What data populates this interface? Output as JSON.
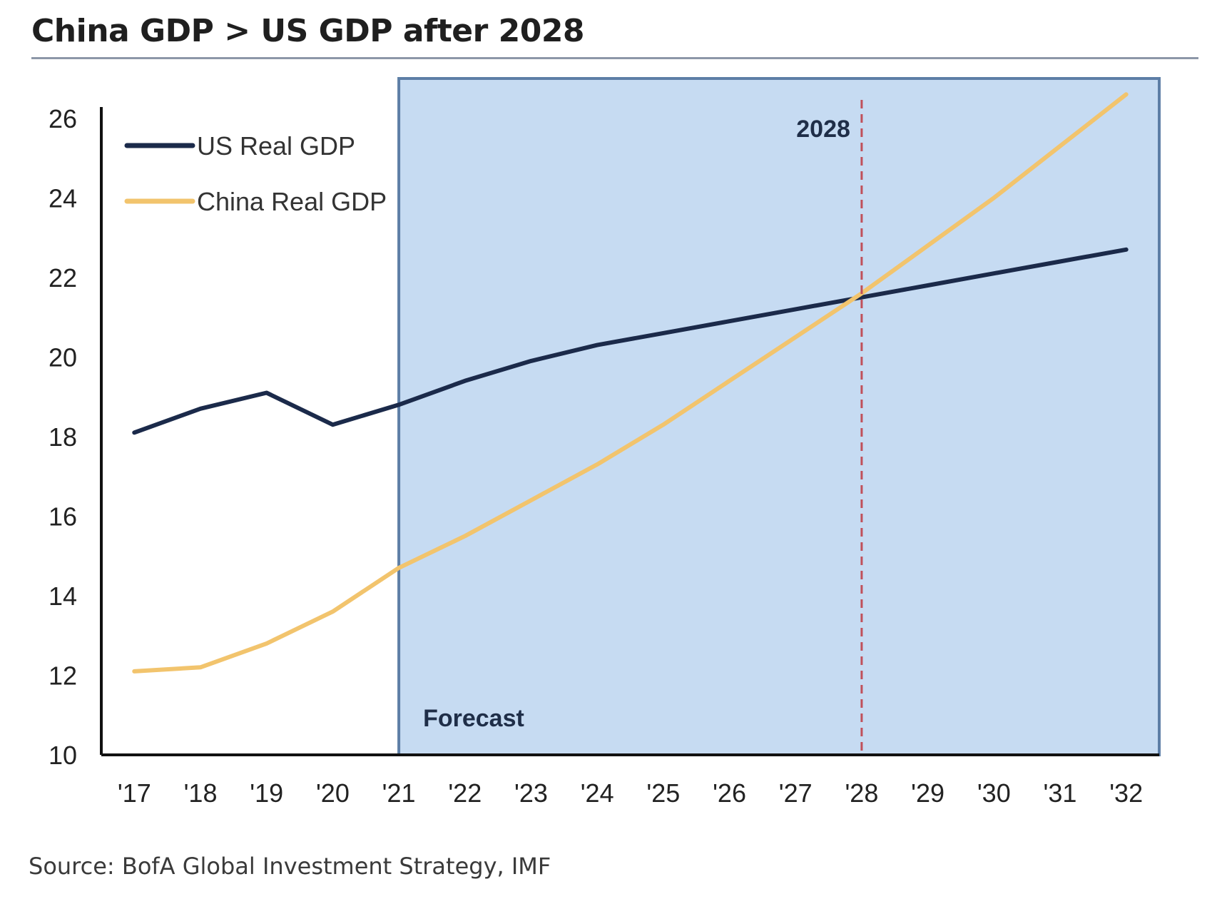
{
  "title": "China GDP > US GDP after 2028",
  "source": "Source: BofA Global Investment Strategy, IMF",
  "chart_data": {
    "type": "line",
    "x": [
      2017,
      2018,
      2019,
      2020,
      2021,
      2022,
      2023,
      2024,
      2025,
      2026,
      2027,
      2028,
      2029,
      2030,
      2031,
      2032
    ],
    "x_tick_labels": [
      "'17",
      "'18",
      "'19",
      "'20",
      "'21",
      "'22",
      "'23",
      "'24",
      "'25",
      "'26",
      "'27",
      "'28",
      "'29",
      "'30",
      "'31",
      "'32"
    ],
    "y_ticks": [
      10,
      12,
      14,
      16,
      18,
      20,
      22,
      24,
      26
    ],
    "ylim": [
      10,
      27
    ],
    "xlim": [
      2016.5,
      2032.5
    ],
    "series": [
      {
        "name": "US Real GDP",
        "color": "#1b2a4a",
        "values": [
          18.1,
          18.7,
          19.1,
          18.3,
          18.8,
          19.4,
          19.9,
          20.3,
          20.6,
          20.9,
          21.2,
          21.5,
          21.8,
          22.1,
          22.4,
          22.7
        ]
      },
      {
        "name": "China Real GDP",
        "color": "#f2c46d",
        "values": [
          12.1,
          12.2,
          12.8,
          13.6,
          14.7,
          15.5,
          16.4,
          17.3,
          18.3,
          19.4,
          20.5,
          21.6,
          22.8,
          24.0,
          25.3,
          26.6
        ]
      }
    ],
    "forecast_region": {
      "label": "Forecast",
      "x_start": 2021,
      "x_end": 2032.5,
      "color": "#c6dbf2",
      "border": "#5d7ea6"
    },
    "reference_line": {
      "label": "2028",
      "x": 2028,
      "color": "#c0505a"
    },
    "legend_placement": "top-left",
    "grid": false
  }
}
